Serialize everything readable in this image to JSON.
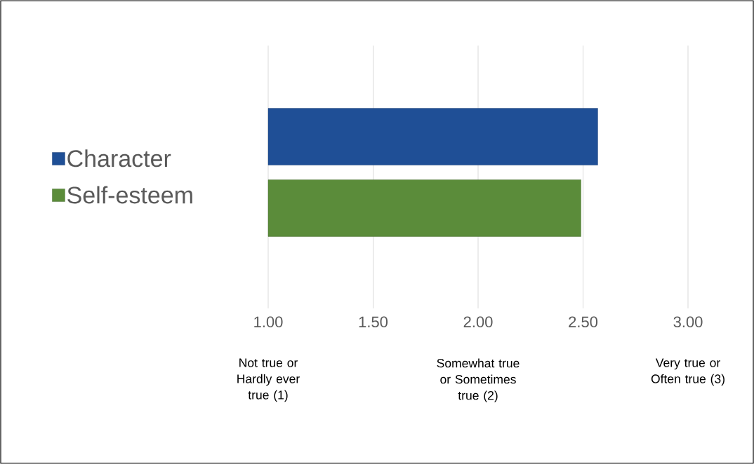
{
  "chart_data": {
    "type": "bar",
    "orientation": "horizontal",
    "categories": [
      null
    ],
    "series": [
      {
        "name": "Character",
        "color": "#1f4f96",
        "values": [
          2.57
        ]
      },
      {
        "name": "Self-esteem",
        "color": "#5b8c3a",
        "values": [
          2.49
        ]
      }
    ],
    "xlim": [
      1,
      3
    ],
    "xticks": [
      {
        "value": 1,
        "label": "1.00"
      },
      {
        "value": 1.5,
        "label": "1.50"
      },
      {
        "value": 2,
        "label": "2.00"
      },
      {
        "value": 2.5,
        "label": "2.50"
      },
      {
        "value": 3,
        "label": "3.00"
      }
    ],
    "grid": "x",
    "legend": "left",
    "annotations": [
      "Not true or Hardly ever true (1)",
      "Somewhat true or Sometimes true (2)",
      "Very true or Often true (3)"
    ]
  }
}
